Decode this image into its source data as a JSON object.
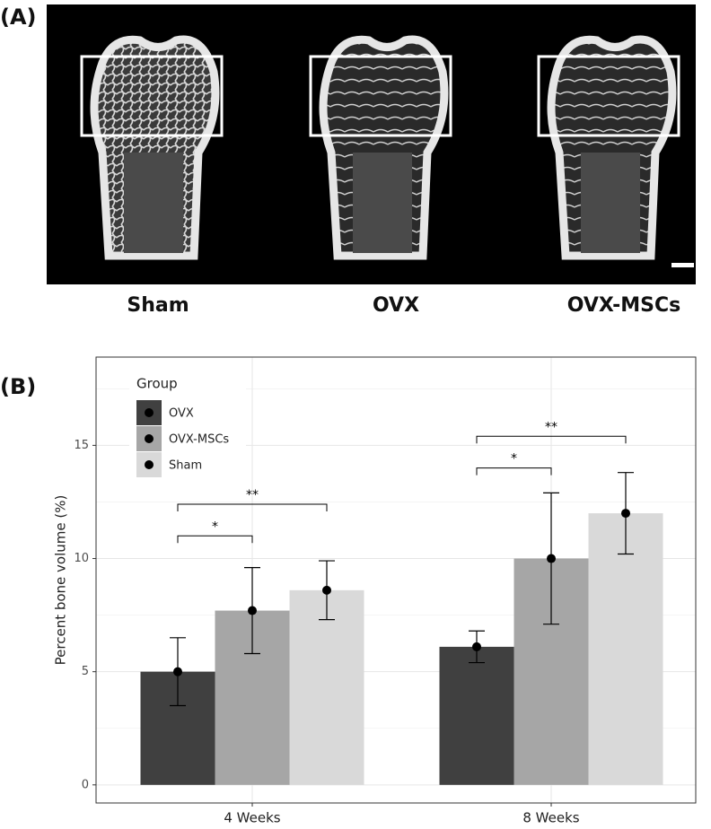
{
  "panel_a": {
    "label": "(A)",
    "captions": [
      "Sham",
      "OVX",
      "OVX-MSCs"
    ]
  },
  "panel_b": {
    "label": "(B)"
  },
  "chart_data": {
    "type": "bar",
    "categories": [
      "4 Weeks",
      "8 Weeks"
    ],
    "series": [
      {
        "name": "OVX",
        "color": "#404040",
        "values": [
          5.0,
          6.1
        ],
        "errors": [
          1.5,
          0.7
        ]
      },
      {
        "name": "OVX-MSCs",
        "color": "#a6a6a6",
        "values": [
          7.7,
          10.0
        ],
        "errors": [
          1.9,
          2.9
        ]
      },
      {
        "name": "Sham",
        "color": "#d9d9d9",
        "values": [
          8.6,
          12.0
        ],
        "errors": [
          1.3,
          1.8
        ]
      }
    ],
    "ylabel": "Percent bone volume (%)",
    "ylim": [
      -0.8,
      18.9
    ],
    "yticks": [
      0,
      5,
      10,
      15
    ],
    "minor_yticks": [
      2.5,
      7.5,
      12.5,
      17.5
    ],
    "grid": true,
    "legend_title": "Group",
    "legend_position": "top-left",
    "significance": [
      {
        "category": 0,
        "series": [
          0,
          1
        ],
        "y": 11.0,
        "label": "*"
      },
      {
        "category": 0,
        "series": [
          0,
          2
        ],
        "y": 12.4,
        "label": "**"
      },
      {
        "category": 1,
        "series": [
          0,
          1
        ],
        "y": 14.0,
        "label": "*"
      },
      {
        "category": 1,
        "series": [
          0,
          2
        ],
        "y": 15.4,
        "label": "**"
      }
    ]
  }
}
